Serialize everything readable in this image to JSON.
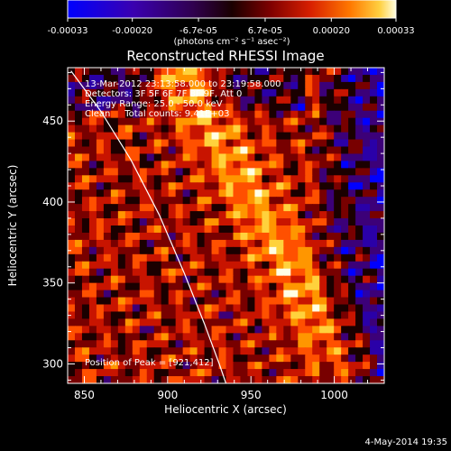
{
  "colorbar": {
    "tick_labels": [
      "-0.00033",
      "-0.00020",
      "-6.7e-05",
      "6.7e-05",
      "0.00020",
      "0.00033"
    ],
    "tick_values": [
      -0.00033,
      -0.0002,
      -6.7e-05,
      6.7e-05,
      0.0002,
      0.00033
    ],
    "range": [
      -0.00033,
      0.00033
    ],
    "unit_label": "(photons cm⁻² s⁻¹ asec⁻²)"
  },
  "chart_data": {
    "type": "heatmap",
    "title": "Reconstructed RHESSI Image",
    "xlabel": "Heliocentric X (arcsec)",
    "ylabel": "Heliocentric Y (arcsec)",
    "xlim": [
      840,
      1030
    ],
    "ylim": [
      288,
      483
    ],
    "xticks": [
      850,
      900,
      950,
      1000
    ],
    "yticks": [
      300,
      350,
      400,
      450
    ],
    "annotations": [
      "13-Mar-2012 23:13:58.000 to 23:19:58.000",
      "Detectors: 3F 5F 6F 7F 8F 9F, Att 0",
      "Energy Range: 25.0 - 50.0 keV",
      "Clean     Total counts: 9.41E+03"
    ],
    "peak_label": "Position of Peak = [921,412]",
    "peak_position": [
      921,
      412
    ],
    "limb_curve": [
      [
        842,
        481
      ],
      [
        860,
        456
      ],
      [
        878,
        426
      ],
      [
        895,
        392
      ],
      [
        910,
        356
      ],
      [
        922,
        325
      ],
      [
        931,
        300
      ],
      [
        935,
        288
      ]
    ]
  },
  "footer": {
    "date": "4-May-2014 19:35"
  },
  "colors": {
    "background": "#000000",
    "foreground": "#ffffff",
    "colormap": [
      "#0000ff",
      "#2a00a8",
      "#3c0078",
      "#1a0000",
      "#780000",
      "#c81400",
      "#ff5000",
      "#ff9600",
      "#ffd23c",
      "#ffffe6"
    ]
  }
}
